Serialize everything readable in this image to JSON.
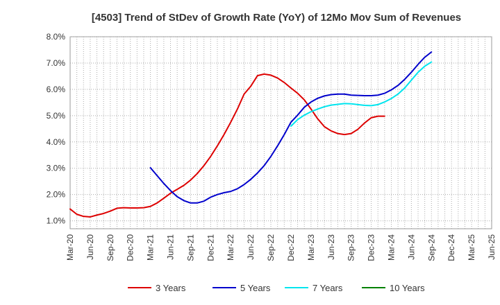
{
  "chart_data": {
    "type": "line",
    "title": "[4503]  Trend of StDev of Growth Rate (YoY) of 12Mo Mov Sum of Revenues",
    "xlabel": "",
    "ylabel": "",
    "ylim": [
      0.007,
      0.08
    ],
    "y_ticks": [
      {
        "value": 0.01,
        "label": "1.0%"
      },
      {
        "value": 0.02,
        "label": "2.0%"
      },
      {
        "value": 0.03,
        "label": "3.0%"
      },
      {
        "value": 0.04,
        "label": "4.0%"
      },
      {
        "value": 0.05,
        "label": "5.0%"
      },
      {
        "value": 0.06,
        "label": "6.0%"
      },
      {
        "value": 0.07,
        "label": "7.0%"
      },
      {
        "value": 0.08,
        "label": "8.0%"
      }
    ],
    "x_ticks": [
      "Mar-20",
      "Jun-20",
      "Sep-20",
      "Dec-20",
      "Mar-21",
      "Jun-21",
      "Sep-21",
      "Dec-21",
      "Mar-22",
      "Jun-22",
      "Sep-22",
      "Dec-22",
      "Mar-23",
      "Jun-23",
      "Sep-23",
      "Dec-23",
      "Mar-24",
      "Jun-24",
      "Sep-24",
      "Dec-24",
      "Mar-25",
      "Jun-25"
    ],
    "grid": true,
    "legend_position": "bottom",
    "series": [
      {
        "name": "3 Years",
        "color": "#dd0000",
        "points": [
          [
            0,
            0.0145
          ],
          [
            1,
            0.0125
          ],
          [
            2,
            0.0117
          ],
          [
            3,
            0.0115
          ],
          [
            4,
            0.0122
          ],
          [
            5,
            0.0128
          ],
          [
            6,
            0.0137
          ],
          [
            7,
            0.0148
          ],
          [
            8,
            0.015
          ],
          [
            9,
            0.0149
          ],
          [
            10,
            0.0149
          ],
          [
            11,
            0.015
          ],
          [
            12,
            0.0155
          ],
          [
            13,
            0.0168
          ],
          [
            14,
            0.0186
          ],
          [
            15,
            0.0205
          ],
          [
            16,
            0.022
          ],
          [
            17,
            0.0235
          ],
          [
            18,
            0.0255
          ],
          [
            19,
            0.028
          ],
          [
            20,
            0.031
          ],
          [
            21,
            0.0345
          ],
          [
            22,
            0.0385
          ],
          [
            23,
            0.0428
          ],
          [
            24,
            0.0475
          ],
          [
            25,
            0.0525
          ],
          [
            26,
            0.0582
          ],
          [
            27,
            0.0612
          ],
          [
            28,
            0.0652
          ],
          [
            29,
            0.0658
          ],
          [
            30,
            0.0654
          ],
          [
            31,
            0.0643
          ],
          [
            32,
            0.0626
          ],
          [
            33,
            0.0605
          ],
          [
            34,
            0.0585
          ],
          [
            35,
            0.056
          ],
          [
            36,
            0.0525
          ],
          [
            37,
            0.0488
          ],
          [
            38,
            0.0458
          ],
          [
            39,
            0.0442
          ],
          [
            40,
            0.0432
          ],
          [
            41,
            0.0428
          ],
          [
            42,
            0.0432
          ],
          [
            43,
            0.0448
          ],
          [
            44,
            0.0472
          ],
          [
            45,
            0.0492
          ],
          [
            46,
            0.0498
          ],
          [
            47,
            0.0498
          ]
        ]
      },
      {
        "name": "5 Years",
        "color": "#0000cc",
        "points": [
          [
            12,
            0.0302
          ],
          [
            13,
            0.0272
          ],
          [
            14,
            0.0242
          ],
          [
            15,
            0.0215
          ],
          [
            16,
            0.0192
          ],
          [
            17,
            0.0177
          ],
          [
            18,
            0.0168
          ],
          [
            19,
            0.0168
          ],
          [
            20,
            0.0175
          ],
          [
            21,
            0.019
          ],
          [
            22,
            0.02
          ],
          [
            23,
            0.0207
          ],
          [
            24,
            0.0212
          ],
          [
            25,
            0.0222
          ],
          [
            26,
            0.0238
          ],
          [
            27,
            0.0258
          ],
          [
            28,
            0.0282
          ],
          [
            29,
            0.031
          ],
          [
            30,
            0.0345
          ],
          [
            31,
            0.0385
          ],
          [
            32,
            0.0428
          ],
          [
            33,
            0.0475
          ],
          [
            34,
            0.0502
          ],
          [
            35,
            0.0532
          ],
          [
            36,
            0.0552
          ],
          [
            37,
            0.0566
          ],
          [
            38,
            0.0575
          ],
          [
            39,
            0.058
          ],
          [
            40,
            0.0582
          ],
          [
            41,
            0.0582
          ],
          [
            42,
            0.0578
          ],
          [
            43,
            0.0577
          ],
          [
            44,
            0.0576
          ],
          [
            45,
            0.0576
          ],
          [
            46,
            0.0578
          ],
          [
            47,
            0.0585
          ],
          [
            48,
            0.0598
          ],
          [
            49,
            0.0615
          ],
          [
            50,
            0.0638
          ],
          [
            51,
            0.0665
          ],
          [
            52,
            0.0695
          ],
          [
            53,
            0.0722
          ],
          [
            54,
            0.0742
          ]
        ]
      },
      {
        "name": "7 Years",
        "color": "#00e5ee",
        "points": [
          [
            33,
            0.046
          ],
          [
            34,
            0.0485
          ],
          [
            35,
            0.0502
          ],
          [
            36,
            0.0515
          ],
          [
            37,
            0.0525
          ],
          [
            38,
            0.0534
          ],
          [
            39,
            0.054
          ],
          [
            40,
            0.0543
          ],
          [
            41,
            0.0546
          ],
          [
            42,
            0.0545
          ],
          [
            43,
            0.0542
          ],
          [
            44,
            0.0539
          ],
          [
            45,
            0.0538
          ],
          [
            46,
            0.0542
          ],
          [
            47,
            0.0552
          ],
          [
            48,
            0.0565
          ],
          [
            49,
            0.0582
          ],
          [
            50,
            0.0605
          ],
          [
            51,
            0.0635
          ],
          [
            52,
            0.0665
          ],
          [
            53,
            0.0688
          ],
          [
            54,
            0.0704
          ]
        ]
      },
      {
        "name": "10 Years",
        "color": "#008000",
        "points": []
      }
    ]
  }
}
